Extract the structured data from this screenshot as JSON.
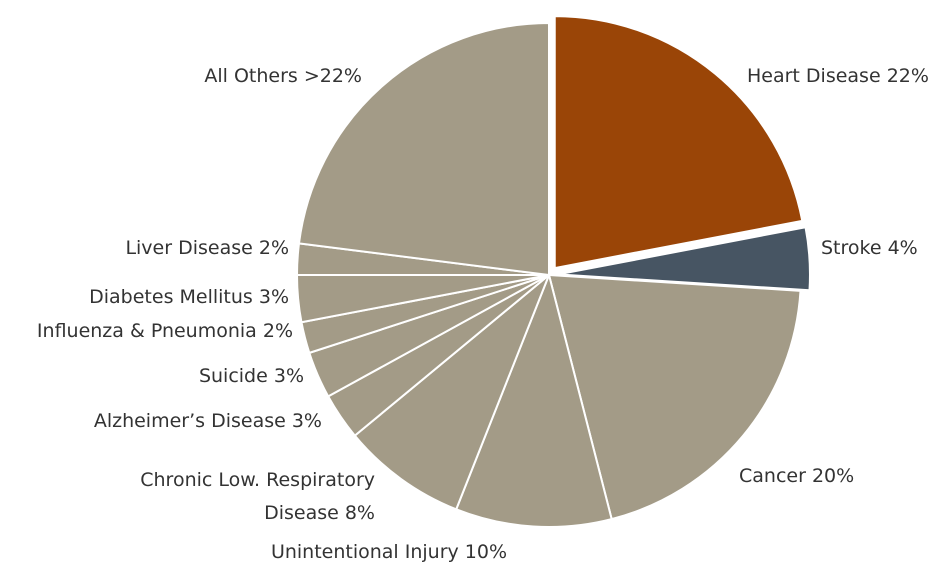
{
  "chart_data": {
    "type": "pie",
    "colors": {
      "heart": "#9a4507",
      "stroke": "#475563",
      "other": "#a39b87"
    },
    "slices": [
      {
        "label": "Heart Disease 22%",
        "value": 22,
        "color": "#9a4507",
        "exploded": true
      },
      {
        "label": "Stroke 4%",
        "value": 4,
        "color": "#475563",
        "exploded": true
      },
      {
        "label": "Cancer 20%",
        "value": 20,
        "color": "#a39b87"
      },
      {
        "label": "Unintentional Injury 10%",
        "value": 10,
        "color": "#a39b87"
      },
      {
        "label": [
          "Chronic Low. Respiratory",
          "Disease 8%"
        ],
        "value": 8,
        "color": "#a39b87"
      },
      {
        "label": "Alzheimer’s Disease 3%",
        "value": 3,
        "color": "#a39b87"
      },
      {
        "label": "Suicide 3%",
        "value": 3,
        "color": "#a39b87"
      },
      {
        "label": "Influenza & Pneumonia 2%",
        "value": 2,
        "color": "#a39b87"
      },
      {
        "label": "Diabetes Mellitus 3%",
        "value": 3,
        "color": "#a39b87"
      },
      {
        "label": "Liver Disease 2%",
        "value": 2,
        "color": "#a39b87"
      },
      {
        "label": "All Others >22%",
        "value": 23,
        "color": "#a39b87"
      }
    ]
  }
}
